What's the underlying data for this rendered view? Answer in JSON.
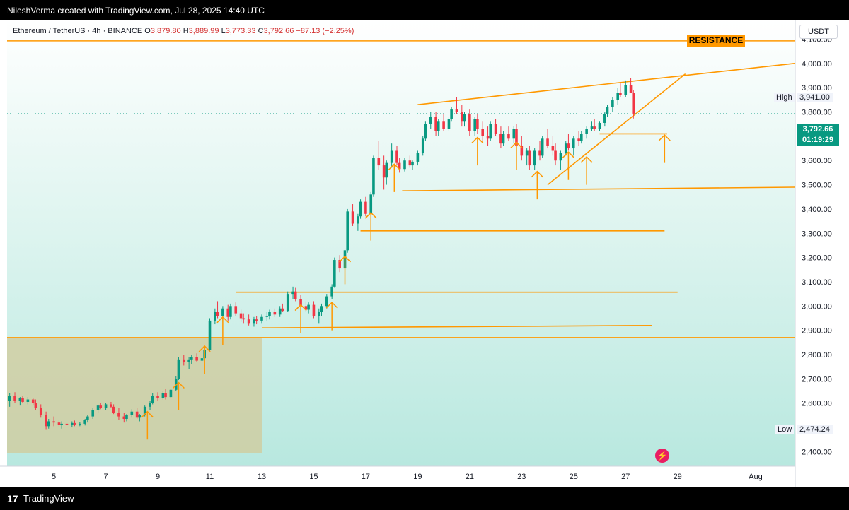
{
  "header": {
    "credit": "NileshVerma created with TradingView.com, Jul 28, 2025 14:40 UTC"
  },
  "legend": {
    "symbol": "Ethereum / TetherUS · 4h · BINANCE",
    "o_label": "O",
    "o_value": "3,879.80",
    "h_label": "H",
    "h_value": "3,889.99",
    "l_label": "L",
    "l_value": "3,773.33",
    "c_label": "C",
    "c_value": "3,792.66",
    "change": "−87.13 (−2.25%)"
  },
  "currency": "USDT",
  "resistance_label": "RESISTANCE",
  "high": {
    "label": "High",
    "value": "3,941.00"
  },
  "low": {
    "label": "Low",
    "value": "2,474.24"
  },
  "last_price": {
    "value": "3,792.66",
    "countdown": "01:19:29"
  },
  "footer": {
    "brand": "TradingView",
    "logo": "17"
  },
  "colors": {
    "up": "#089981",
    "down": "#f23645",
    "drawing": "#ff9800",
    "zone": "#d2c99a"
  },
  "chart_data": {
    "type": "candlestick",
    "ylim": [
      2340,
      4180
    ],
    "y_ticks": [
      2400,
      2500,
      2600,
      2700,
      2800,
      2900,
      3000,
      3100,
      3200,
      3300,
      3400,
      3500,
      3600,
      3700,
      3800,
      3900,
      4000,
      4100
    ],
    "y_tick_labels": [
      "2,400.00",
      "2,500.00",
      "2,600.00",
      "2,700.00",
      "2,800.00",
      "2,900.00",
      "3,000.00",
      "3,100.00",
      "3,200.00",
      "3,300.00",
      "3,400.00",
      "3,500.00",
      "3,600.00",
      "3,700.00",
      "3,800.00",
      "3,900.00",
      "4,000.00",
      "4,100.00"
    ],
    "x_ticks": [
      {
        "label": "5",
        "day": 5
      },
      {
        "label": "7",
        "day": 7
      },
      {
        "label": "9",
        "day": 9
      },
      {
        "label": "11",
        "day": 11
      },
      {
        "label": "13",
        "day": 13
      },
      {
        "label": "15",
        "day": 15
      },
      {
        "label": "17",
        "day": 17
      },
      {
        "label": "19",
        "day": 19
      },
      {
        "label": "21",
        "day": 21
      },
      {
        "label": "23",
        "day": 23
      },
      {
        "label": "25",
        "day": 25
      },
      {
        "label": "27",
        "day": 27
      },
      {
        "label": "29",
        "day": 29
      },
      {
        "label": "Aug",
        "day": 32
      }
    ],
    "x_range": [
      3.2,
      33.5
    ],
    "candles": [
      [
        3.3,
        2610,
        2640,
        2585,
        2630
      ],
      [
        3.5,
        2630,
        2645,
        2600,
        2610
      ],
      [
        3.7,
        2610,
        2625,
        2590,
        2620
      ],
      [
        3.8,
        2620,
        2630,
        2600,
        2605
      ],
      [
        4.0,
        2605,
        2625,
        2595,
        2615
      ],
      [
        4.2,
        2615,
        2620,
        2590,
        2600
      ],
      [
        4.3,
        2600,
        2615,
        2570,
        2580
      ],
      [
        4.5,
        2580,
        2595,
        2540,
        2550
      ],
      [
        4.7,
        2550,
        2565,
        2490,
        2505
      ],
      [
        4.8,
        2505,
        2535,
        2495,
        2525
      ],
      [
        5.0,
        2525,
        2545,
        2505,
        2520
      ],
      [
        5.2,
        2520,
        2530,
        2500,
        2510
      ],
      [
        5.3,
        2510,
        2525,
        2495,
        2515
      ],
      [
        5.5,
        2515,
        2525,
        2505,
        2510
      ],
      [
        5.7,
        2510,
        2525,
        2500,
        2518
      ],
      [
        5.8,
        2518,
        2528,
        2505,
        2512
      ],
      [
        6.0,
        2512,
        2522,
        2505,
        2515
      ],
      [
        6.2,
        2515,
        2535,
        2508,
        2530
      ],
      [
        6.3,
        2530,
        2550,
        2520,
        2545
      ],
      [
        6.5,
        2545,
        2580,
        2535,
        2570
      ],
      [
        6.7,
        2570,
        2595,
        2560,
        2590
      ],
      [
        6.8,
        2590,
        2600,
        2575,
        2580
      ],
      [
        7.0,
        2580,
        2600,
        2570,
        2595
      ],
      [
        7.2,
        2595,
        2605,
        2580,
        2585
      ],
      [
        7.3,
        2585,
        2595,
        2555,
        2560
      ],
      [
        7.5,
        2560,
        2580,
        2530,
        2545
      ],
      [
        7.7,
        2545,
        2560,
        2520,
        2535
      ],
      [
        7.8,
        2535,
        2555,
        2525,
        2550
      ],
      [
        8.0,
        2550,
        2575,
        2540,
        2565
      ],
      [
        8.2,
        2565,
        2580,
        2535,
        2540
      ],
      [
        8.3,
        2540,
        2555,
        2525,
        2550
      ],
      [
        8.5,
        2550,
        2590,
        2545,
        2585
      ],
      [
        8.7,
        2585,
        2610,
        2570,
        2600
      ],
      [
        8.8,
        2600,
        2640,
        2595,
        2630
      ],
      [
        9.0,
        2630,
        2645,
        2610,
        2620
      ],
      [
        9.2,
        2620,
        2650,
        2615,
        2640
      ],
      [
        9.3,
        2640,
        2660,
        2615,
        2625
      ],
      [
        9.5,
        2625,
        2660,
        2620,
        2655
      ],
      [
        9.7,
        2655,
        2710,
        2650,
        2700
      ],
      [
        9.8,
        2700,
        2790,
        2695,
        2780
      ],
      [
        10.0,
        2780,
        2800,
        2755,
        2770
      ],
      [
        10.2,
        2770,
        2790,
        2740,
        2780
      ],
      [
        10.3,
        2780,
        2800,
        2760,
        2790
      ],
      [
        10.5,
        2790,
        2805,
        2770,
        2775
      ],
      [
        10.7,
        2775,
        2795,
        2760,
        2785
      ],
      [
        10.8,
        2785,
        2830,
        2780,
        2820
      ],
      [
        11.0,
        2820,
        2950,
        2815,
        2940
      ],
      [
        11.2,
        2940,
        2990,
        2925,
        2975
      ],
      [
        11.3,
        2975,
        3020,
        2950,
        2960
      ],
      [
        11.5,
        2960,
        3000,
        2935,
        2990
      ],
      [
        11.7,
        2990,
        3005,
        2940,
        2955
      ],
      [
        11.8,
        2955,
        3010,
        2945,
        3000
      ],
      [
        12.0,
        3000,
        3015,
        2960,
        2970
      ],
      [
        12.2,
        2970,
        2985,
        2935,
        2950
      ],
      [
        12.3,
        2950,
        2970,
        2930,
        2945
      ],
      [
        12.5,
        2945,
        2965,
        2920,
        2930
      ],
      [
        12.7,
        2930,
        2955,
        2915,
        2945
      ],
      [
        12.8,
        2945,
        2960,
        2925,
        2940
      ],
      [
        13.0,
        2940,
        2965,
        2930,
        2955
      ],
      [
        13.2,
        2955,
        2975,
        2940,
        2960
      ],
      [
        13.3,
        2960,
        2985,
        2945,
        2975
      ],
      [
        13.5,
        2975,
        2990,
        2955,
        2965
      ],
      [
        13.7,
        2965,
        3000,
        2955,
        2990
      ],
      [
        13.8,
        2990,
        3010,
        2975,
        2980
      ],
      [
        14.0,
        2980,
        3060,
        2975,
        3050
      ],
      [
        14.2,
        3050,
        3080,
        3030,
        3060
      ],
      [
        14.3,
        3060,
        3075,
        3020,
        3030
      ],
      [
        14.5,
        3030,
        3045,
        2990,
        3000
      ],
      [
        14.7,
        3000,
        3020,
        2975,
        2985
      ],
      [
        14.8,
        2985,
        3015,
        2970,
        3005
      ],
      [
        15.0,
        3005,
        3020,
        2950,
        2960
      ],
      [
        15.2,
        2960,
        2990,
        2930,
        2975
      ],
      [
        15.3,
        2975,
        3010,
        2960,
        3000
      ],
      [
        15.5,
        3000,
        3050,
        2990,
        3040
      ],
      [
        15.7,
        3040,
        3090,
        3030,
        3080
      ],
      [
        15.8,
        3080,
        3200,
        3075,
        3190
      ],
      [
        16.0,
        3190,
        3210,
        3140,
        3155
      ],
      [
        16.2,
        3155,
        3240,
        3150,
        3230
      ],
      [
        16.3,
        3230,
        3400,
        3220,
        3390
      ],
      [
        16.5,
        3390,
        3420,
        3330,
        3340
      ],
      [
        16.7,
        3340,
        3380,
        3310,
        3370
      ],
      [
        16.8,
        3370,
        3440,
        3360,
        3430
      ],
      [
        17.0,
        3430,
        3450,
        3370,
        3380
      ],
      [
        17.2,
        3380,
        3470,
        3370,
        3460
      ],
      [
        17.3,
        3460,
        3620,
        3450,
        3610
      ],
      [
        17.5,
        3610,
        3680,
        3560,
        3580
      ],
      [
        17.7,
        3580,
        3620,
        3480,
        3530
      ],
      [
        17.8,
        3530,
        3600,
        3500,
        3590
      ],
      [
        18.0,
        3590,
        3670,
        3570,
        3640
      ],
      [
        18.2,
        3640,
        3660,
        3580,
        3590
      ],
      [
        18.3,
        3590,
        3610,
        3550,
        3565
      ],
      [
        18.5,
        3565,
        3610,
        3555,
        3600
      ],
      [
        18.7,
        3600,
        3620,
        3570,
        3580
      ],
      [
        18.8,
        3580,
        3600,
        3560,
        3595
      ],
      [
        19.0,
        3595,
        3640,
        3580,
        3630
      ],
      [
        19.2,
        3630,
        3700,
        3620,
        3690
      ],
      [
        19.3,
        3690,
        3760,
        3680,
        3750
      ],
      [
        19.5,
        3750,
        3800,
        3730,
        3780
      ],
      [
        19.7,
        3780,
        3800,
        3700,
        3720
      ],
      [
        19.8,
        3720,
        3770,
        3700,
        3760
      ],
      [
        20.0,
        3760,
        3790,
        3720,
        3730
      ],
      [
        20.2,
        3730,
        3780,
        3720,
        3770
      ],
      [
        20.3,
        3770,
        3820,
        3760,
        3810
      ],
      [
        20.5,
        3810,
        3860,
        3790,
        3800
      ],
      [
        20.7,
        3800,
        3830,
        3740,
        3760
      ],
      [
        20.8,
        3760,
        3800,
        3740,
        3790
      ],
      [
        21.0,
        3790,
        3810,
        3700,
        3720
      ],
      [
        21.2,
        3720,
        3780,
        3700,
        3770
      ],
      [
        21.3,
        3770,
        3790,
        3710,
        3730
      ],
      [
        21.5,
        3730,
        3760,
        3680,
        3700
      ],
      [
        21.7,
        3700,
        3740,
        3660,
        3690
      ],
      [
        21.8,
        3690,
        3760,
        3680,
        3750
      ],
      [
        22.0,
        3750,
        3770,
        3700,
        3710
      ],
      [
        22.2,
        3710,
        3740,
        3650,
        3670
      ],
      [
        22.3,
        3670,
        3720,
        3660,
        3710
      ],
      [
        22.5,
        3710,
        3740,
        3680,
        3690
      ],
      [
        22.7,
        3690,
        3740,
        3670,
        3730
      ],
      [
        22.8,
        3730,
        3750,
        3650,
        3660
      ],
      [
        23.0,
        3660,
        3700,
        3600,
        3620
      ],
      [
        23.2,
        3620,
        3650,
        3580,
        3640
      ],
      [
        23.3,
        3640,
        3660,
        3560,
        3580
      ],
      [
        23.5,
        3580,
        3650,
        3560,
        3640
      ],
      [
        23.7,
        3640,
        3680,
        3600,
        3620
      ],
      [
        23.8,
        3620,
        3700,
        3610,
        3690
      ],
      [
        24.0,
        3690,
        3730,
        3650,
        3660
      ],
      [
        24.2,
        3660,
        3700,
        3620,
        3640
      ],
      [
        24.3,
        3640,
        3670,
        3580,
        3600
      ],
      [
        24.5,
        3600,
        3640,
        3560,
        3630
      ],
      [
        24.7,
        3630,
        3680,
        3620,
        3670
      ],
      [
        24.8,
        3670,
        3710,
        3640,
        3650
      ],
      [
        25.0,
        3650,
        3700,
        3620,
        3690
      ],
      [
        25.2,
        3690,
        3720,
        3660,
        3680
      ],
      [
        25.3,
        3680,
        3720,
        3670,
        3710
      ],
      [
        25.5,
        3710,
        3740,
        3690,
        3730
      ],
      [
        25.7,
        3730,
        3760,
        3720,
        3740
      ],
      [
        25.8,
        3740,
        3770,
        3720,
        3730
      ],
      [
        26.0,
        3730,
        3760,
        3720,
        3755
      ],
      [
        26.2,
        3755,
        3800,
        3740,
        3790
      ],
      [
        26.3,
        3790,
        3830,
        3780,
        3820
      ],
      [
        26.5,
        3820,
        3860,
        3800,
        3850
      ],
      [
        26.7,
        3850,
        3900,
        3830,
        3880
      ],
      [
        26.8,
        3880,
        3920,
        3860,
        3870
      ],
      [
        27.0,
        3870,
        3930,
        3860,
        3910
      ],
      [
        27.2,
        3910,
        3941,
        3880,
        3880
      ],
      [
        27.3,
        3880,
        3890,
        3773,
        3793
      ]
    ]
  }
}
